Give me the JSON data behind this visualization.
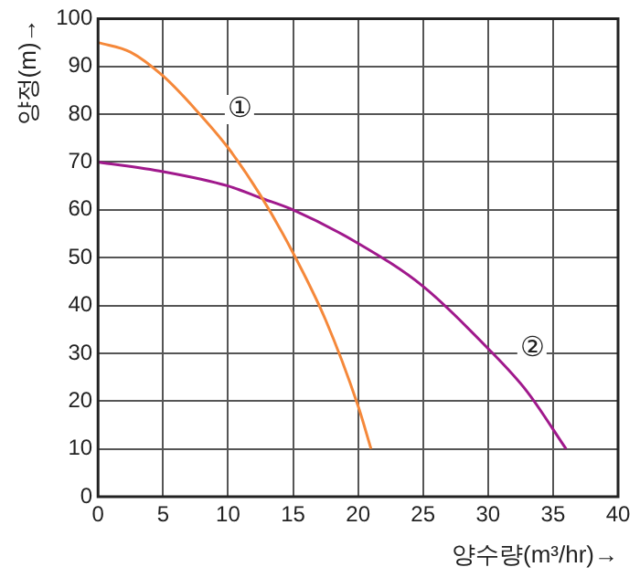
{
  "chart_data": {
    "type": "line",
    "xlabel": "양수량(m³/hr)→",
    "ylabel": "양정(m)→",
    "xlim": [
      0,
      40
    ],
    "xticks": [
      0,
      5,
      10,
      15,
      20,
      25,
      30,
      35,
      40
    ],
    "ylim": [
      0,
      100
    ],
    "yticks": [
      0,
      10,
      20,
      30,
      40,
      50,
      60,
      70,
      80,
      90,
      100
    ],
    "grid": true,
    "legend": false,
    "marker": "none",
    "line_style": "solid",
    "series": [
      {
        "name": "①",
        "color": "#f5883a",
        "x": [
          0,
          2.5,
          5,
          7.5,
          10,
          12.5,
          15,
          17.5,
          20,
          21
        ],
        "values": [
          95,
          93,
          88,
          81,
          73,
          63,
          51,
          37,
          19,
          10
        ]
      },
      {
        "name": "②",
        "color": "#a0198c",
        "x": [
          0,
          5,
          10,
          12.5,
          15,
          20,
          25,
          30,
          33,
          36
        ],
        "values": [
          70,
          68,
          65,
          62.5,
          60,
          53,
          44,
          31,
          22,
          10
        ]
      }
    ]
  }
}
